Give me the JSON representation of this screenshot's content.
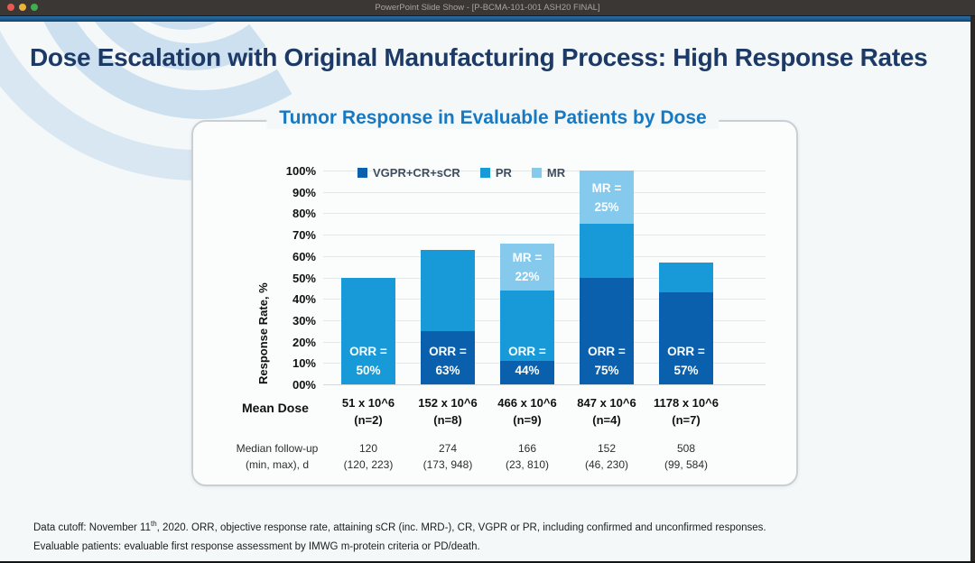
{
  "window": {
    "title": "PowerPoint Slide Show - [P-BCMA-101-001 ASH20 FINAL]"
  },
  "slide": {
    "title": "Dose Escalation with Original Manufacturing Process: High Response Rates",
    "footnote": {
      "line1_pre": "Data cutoff: November 11",
      "line1_sup": "th",
      "line1_post": ", 2020. ORR, objective response rate, attaining sCR (inc. MRD-), CR, VGPR or PR, including confirmed and unconfirmed responses.",
      "line2": "Evaluable patients: evaluable first response assessment by IMWG m-protein criteria or PD/death."
    }
  },
  "chart_data": {
    "type": "bar",
    "stacked": true,
    "title": "Tumor Response in Evaluable Patients by Dose",
    "ylabel": "Response Rate, %",
    "ylim": [
      0,
      100
    ],
    "ytick_labels": [
      "100%",
      "90%",
      "80%",
      "70%",
      "60%",
      "50%",
      "40%",
      "30%",
      "20%",
      "10%",
      "00%"
    ],
    "grid": true,
    "legend_position": "top-inside",
    "categories": [
      "51 x 10^6 (n=2)",
      "152 x 10^6 (n=8)",
      "466 x 10^6 (n=9)",
      "847 x 10^6 (n=4)",
      "1178 x 10^6 (n=7)"
    ],
    "series": [
      {
        "name": "VGPR+CR+sCR",
        "color": "#0b60ad",
        "values": [
          0,
          25,
          11,
          50,
          43
        ]
      },
      {
        "name": "PR",
        "color": "#189ad8",
        "values": [
          50,
          38,
          33,
          25,
          14
        ]
      },
      {
        "name": "MR",
        "color": "#85c9ec",
        "values": [
          0,
          0,
          22,
          25,
          0
        ]
      }
    ],
    "bar_totals": [
      50,
      63,
      66,
      100,
      57
    ],
    "annotations": [
      {
        "orr_l1": "ORR =",
        "orr_l2": "50%",
        "mr_l1": null,
        "mr_l2": null
      },
      {
        "orr_l1": "ORR =",
        "orr_l2": "63%",
        "mr_l1": null,
        "mr_l2": null
      },
      {
        "orr_l1": "ORR =",
        "orr_l2": "44%",
        "mr_l1": "MR =",
        "mr_l2": "22%"
      },
      {
        "orr_l1": "ORR =",
        "orr_l2": "75%",
        "mr_l1": "MR =",
        "mr_l2": "25%"
      },
      {
        "orr_l1": "ORR =",
        "orr_l2": "57%",
        "mr_l1": null,
        "mr_l2": null
      }
    ],
    "xaxis": {
      "mean_dose_label": "Mean Dose",
      "doses": [
        {
          "dose": "51 x 10^6",
          "n": "(n=2)"
        },
        {
          "dose": "152 x 10^6",
          "n": "(n=8)"
        },
        {
          "dose": "466 x 10^6",
          "n": "(n=9)"
        },
        {
          "dose": "847 x 10^6",
          "n": "(n=4)"
        },
        {
          "dose": "1178 x 10^6",
          "n": "(n=7)"
        }
      ],
      "followup_label_line1": "Median follow-up",
      "followup_label_line2": "(min, max), d",
      "followup": [
        {
          "median": "120",
          "range": "(120, 223)"
        },
        {
          "median": "274",
          "range": "(173, 948)"
        },
        {
          "median": "166",
          "range": "(23, 810)"
        },
        {
          "median": "152",
          "range": "(46, 230)"
        },
        {
          "median": "508",
          "range": "(99, 584)"
        }
      ]
    }
  },
  "colors": {
    "titlebar_bg": "#3b3734",
    "accent_strip": "#1b5c8f",
    "slide_bg": "#f4f8f9",
    "slide_title": "#1d3a66",
    "chart_title": "#1779c2",
    "vgpr_cr_scr": "#0b60ad",
    "pr": "#189ad8",
    "mr": "#85c9ec"
  }
}
